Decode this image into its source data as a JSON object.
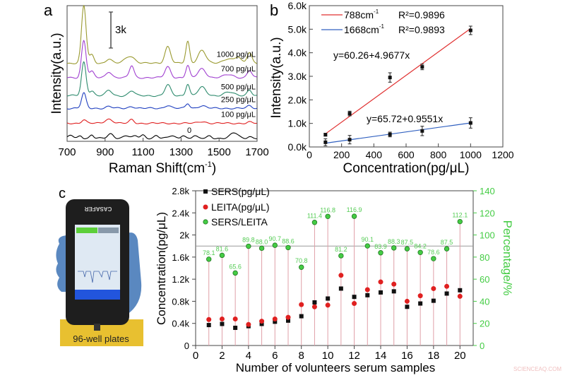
{
  "panel_labels": {
    "a": "a",
    "b": "b",
    "c": "c"
  },
  "photo": {
    "device_brand": "CASAFER",
    "caption": "96-well plates"
  },
  "watermark": "SCIENCEAQ.COM",
  "chart_data": [
    {
      "type": "line",
      "panel": "a",
      "xlabel": "Raman Shift(cm",
      "xlabel_sup": "-1",
      "xlabel_end": ")",
      "ylabel": "Intensity(a.u.)",
      "xlim": [
        700,
        1700
      ],
      "xticks": [
        "700",
        "900",
        "1100",
        "1300",
        "1500",
        "1700"
      ],
      "scale_bar": {
        "label": "3k",
        "value": 3000
      },
      "series": [
        {
          "name": "0",
          "color": "#000000",
          "offset": 250,
          "peaks": [
            [
              720,
              250,
              12
            ],
            [
              770,
              200,
              10
            ],
            [
              830,
              300,
              10
            ],
            [
              930,
              350,
              15
            ],
            [
              1010,
              250,
              15
            ],
            [
              1060,
              200,
              12
            ],
            [
              1100,
              250,
              12
            ],
            [
              1170,
              250,
              12
            ],
            [
              1250,
              200,
              15
            ],
            [
              1310,
              250,
              12
            ],
            [
              1370,
              200,
              12
            ],
            [
              1450,
              200,
              12
            ],
            [
              1580,
              450,
              20
            ],
            [
              1660,
              150,
              12
            ]
          ]
        },
        {
          "name": "100 pg/μL",
          "color": "#e02020",
          "offset": 1500,
          "peaks": [
            [
              788,
              300,
              12
            ],
            [
              920,
              350,
              20
            ],
            [
              1040,
              300,
              12
            ],
            [
              1410,
              150,
              20
            ],
            [
              1660,
              100,
              12
            ]
          ]
        },
        {
          "name": "250 pg/μL",
          "color": "#2040c0",
          "offset": 2750,
          "peaks": [
            [
              788,
              1250,
              12
            ],
            [
              920,
              150,
              15
            ],
            [
              1040,
              150,
              15
            ],
            [
              1230,
              250,
              15
            ],
            [
              1335,
              400,
              10
            ],
            [
              1410,
              200,
              20
            ],
            [
              1660,
              200,
              12
            ]
          ]
        },
        {
          "name": "500 pg/μL",
          "color": "#2e8b6e",
          "offset": 3800,
          "peaks": [
            [
              788,
              2800,
              12
            ],
            [
              830,
              400,
              12
            ],
            [
              920,
              450,
              15
            ],
            [
              1040,
              400,
              15
            ],
            [
              1230,
              900,
              15
            ],
            [
              1335,
              1000,
              10
            ],
            [
              1410,
              700,
              20
            ],
            [
              1550,
              300,
              25
            ],
            [
              1660,
              500,
              12
            ]
          ]
        },
        {
          "name": "700 pg/μL",
          "color": "#a040d0",
          "offset": 5300,
          "peaks": [
            [
              788,
              3100,
              12
            ],
            [
              830,
              500,
              12
            ],
            [
              920,
              500,
              15
            ],
            [
              1040,
              1000,
              12
            ],
            [
              1230,
              900,
              15
            ],
            [
              1335,
              1000,
              10
            ],
            [
              1410,
              750,
              20
            ],
            [
              1550,
              250,
              25
            ],
            [
              1660,
              600,
              12
            ]
          ]
        },
        {
          "name": "1000 pg/μL",
          "color": "#9a9a30",
          "offset": 6500,
          "peaks": [
            [
              788,
              4800,
              12
            ],
            [
              830,
              700,
              12
            ],
            [
              920,
              350,
              15
            ],
            [
              1030,
              600,
              25
            ],
            [
              1230,
              1400,
              15
            ],
            [
              1335,
              1800,
              10
            ],
            [
              1410,
              1100,
              20
            ],
            [
              1550,
              400,
              25
            ],
            [
              1600,
              500,
              15
            ],
            [
              1660,
              900,
              12
            ]
          ]
        }
      ]
    },
    {
      "type": "scatter",
      "panel": "b",
      "xlabel": "Concentration(pg/μL)",
      "ylabel": "Intensity(a.u.)",
      "xlim": [
        0,
        1200
      ],
      "ylim": [
        0,
        6000
      ],
      "xticks": [
        "0",
        "200",
        "400",
        "600",
        "800",
        "1000",
        "1200"
      ],
      "yticks": [
        "0.0k",
        "1.0k",
        "2.0k",
        "3.0k",
        "4.0k",
        "5.0k",
        "6.0k"
      ],
      "legend_position": "top-left",
      "series": [
        {
          "name": "788cm",
          "name_sup": "-1",
          "r2": "R²=0.9896",
          "color": "#e03030",
          "fit_label": "y=60.26+4.9677x",
          "fit": {
            "intercept": 60.26,
            "slope": 4.9677
          },
          "x": [
            100,
            250,
            500,
            700,
            1000
          ],
          "y": [
            520,
            1420,
            2950,
            3400,
            4950
          ],
          "err": [
            60,
            100,
            200,
            120,
            180
          ]
        },
        {
          "name": "1668cm",
          "name_sup": "-1",
          "r2": "R²=0.9893",
          "color": "#3060c0",
          "fit_label": "y=65.72+0.9551x",
          "fit": {
            "intercept": 65.72,
            "slope": 0.9551
          },
          "x": [
            100,
            250,
            500,
            700,
            1000
          ],
          "y": [
            200,
            310,
            530,
            680,
            1020
          ],
          "err": [
            150,
            180,
            100,
            200,
            220
          ]
        }
      ]
    },
    {
      "type": "scatter",
      "panel": "c",
      "xlabel": "Number of volunteers serum samples",
      "ylabel": "Concentration(pg/μL)",
      "ylabel_right": "Percentage/%",
      "xlim": [
        0,
        21
      ],
      "ylim": [
        0,
        2800
      ],
      "ylim_right": [
        0,
        140
      ],
      "xticks": [
        "0",
        "2",
        "4",
        "6",
        "8",
        "10",
        "12",
        "14",
        "16",
        "18",
        "20"
      ],
      "yticks": [
        "0",
        "0.4k",
        "0.8k",
        "1.2k",
        "1.6k",
        "2k",
        "2.4k",
        "2.8k"
      ],
      "yticks_right": [
        "0",
        "20",
        "40",
        "60",
        "80",
        "100",
        "120",
        "140"
      ],
      "reference_line_percent": 90,
      "legend_position": "top-left",
      "x": [
        1,
        2,
        3,
        4,
        5,
        6,
        7,
        8,
        9,
        10,
        11,
        12,
        13,
        14,
        15,
        16,
        17,
        18,
        19,
        20
      ],
      "series": [
        {
          "name": "SERS(pg/μL)",
          "color": "#111111",
          "marker": "square",
          "values": [
            370,
            390,
            320,
            350,
            390,
            430,
            450,
            530,
            780,
            850,
            1030,
            880,
            910,
            960,
            980,
            700,
            760,
            810,
            940,
            1000
          ]
        },
        {
          "name": "LEITA(pg/μL)",
          "color": "#e02020",
          "marker": "circle",
          "values": [
            470,
            480,
            480,
            380,
            440,
            480,
            510,
            740,
            700,
            730,
            1270,
            760,
            1010,
            1150,
            1110,
            800,
            900,
            1030,
            1070,
            890
          ]
        },
        {
          "name": "SERS/LEITA",
          "color": "#44cc44",
          "marker": "circle",
          "axis": "right",
          "values": [
            78.1,
            81.6,
            65.6,
            89.8,
            88.0,
            90.7,
            88.6,
            70.8,
            111.4,
            116.8,
            81.2,
            116.9,
            90.1,
            83.9,
            88.3,
            87.5,
            84.2,
            78.6,
            87.5,
            112.1
          ],
          "labels": [
            "78.1",
            "81.6",
            "65.6",
            "89.8",
            "88.0",
            "90.7",
            "88.6",
            "70.8",
            "111.4",
            "116.8",
            "81.2",
            "116.9",
            "90.1",
            "83.9",
            "88.3",
            "87.5",
            "84.2",
            "78.6",
            "87.5",
            "112.1"
          ]
        }
      ]
    }
  ]
}
